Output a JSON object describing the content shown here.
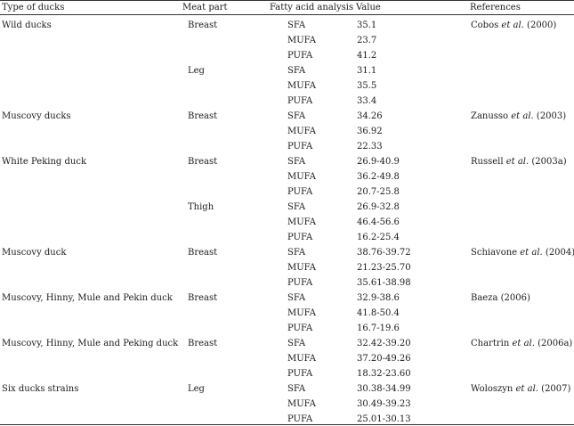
{
  "headers": {
    "type": "Type of ducks",
    "meat": "Meat part",
    "fatty": "Fatty acid analysis",
    "value": "Value",
    "refs": "References"
  },
  "rows": [
    {
      "type": "Wild ducks",
      "meat": "Breast",
      "fa": "SFA",
      "value": "35.1",
      "ref": {
        "pre": "Cobos ",
        "etal": "et al.",
        "post": " (2000)"
      }
    },
    {
      "type": "",
      "meat": "",
      "fa": "MUFA",
      "value": "23.7",
      "ref": null
    },
    {
      "type": "",
      "meat": "",
      "fa": "PUFA",
      "value": "41.2",
      "ref": null
    },
    {
      "type": "",
      "meat": "Leg",
      "fa": "SFA",
      "value": "31.1",
      "ref": null
    },
    {
      "type": "",
      "meat": "",
      "fa": "MUFA",
      "value": "35.5",
      "ref": null
    },
    {
      "type": "",
      "meat": "",
      "fa": "PUFA",
      "value": "33.4",
      "ref": null
    },
    {
      "type": "Muscovy ducks",
      "meat": "Breast",
      "fa": "SFA",
      "value": "34.26",
      "ref": {
        "pre": "Zanusso ",
        "etal": "et al.",
        "post": " (2003)"
      }
    },
    {
      "type": "",
      "meat": "",
      "fa": "MUFA",
      "value": "36.92",
      "ref": null
    },
    {
      "type": "",
      "meat": "",
      "fa": "PUFA",
      "value": "22.33",
      "ref": null
    },
    {
      "type": "White Peking duck",
      "meat": "Breast",
      "fa": "SFA",
      "value": "26.9-40.9",
      "ref": {
        "pre": "Russell ",
        "etal": "et al.",
        "post": " (2003a)"
      }
    },
    {
      "type": "",
      "meat": "",
      "fa": "MUFA",
      "value": "36.2-49.8",
      "ref": null
    },
    {
      "type": "",
      "meat": "",
      "fa": "PUFA",
      "value": "20.7-25.8",
      "ref": null
    },
    {
      "type": "",
      "meat": "Thigh",
      "fa": "SFA",
      "value": "26.9-32.8",
      "ref": null
    },
    {
      "type": "",
      "meat": "",
      "fa": "MUFA",
      "value": "46.4-56.6",
      "ref": null
    },
    {
      "type": "",
      "meat": "",
      "fa": "PUFA",
      "value": "16.2-25.4",
      "ref": null
    },
    {
      "type": "Muscovy duck",
      "meat": "Breast",
      "fa": "SFA",
      "value": "38.76-39.72",
      "ref": {
        "pre": "Schiavone ",
        "etal": "et al.",
        "post": " (2004)"
      }
    },
    {
      "type": "",
      "meat": "",
      "fa": "MUFA",
      "value": "21.23-25.70",
      "ref": null
    },
    {
      "type": "",
      "meat": "",
      "fa": "PUFA",
      "value": "35.61-38.98",
      "ref": null
    },
    {
      "type": "Muscovy, Hinny, Mule and Pekin duck",
      "meat": "Breast",
      "fa": "SFA",
      "value": "32.9-38.6",
      "ref": {
        "pre": "Baeza (2006)",
        "etal": "",
        "post": ""
      }
    },
    {
      "type": "",
      "meat": "",
      "fa": "MUFA",
      "value": "41.8-50.4",
      "ref": null
    },
    {
      "type": "",
      "meat": "",
      "fa": "PUFA",
      "value": "16.7-19.6",
      "ref": null
    },
    {
      "type": "Muscovy, Hinny, Mule and Peking duck",
      "meat": "Breast",
      "fa": "SFA",
      "value": "32.42-39.20",
      "ref": {
        "pre": "Chartrin ",
        "etal": "et al.",
        "post": " (2006a)"
      }
    },
    {
      "type": "",
      "meat": "",
      "fa": "MUFA",
      "value": "37.20-49.26",
      "ref": null
    },
    {
      "type": "",
      "meat": "",
      "fa": "PUFA",
      "value": "18.32-23.60",
      "ref": null
    },
    {
      "type": "Six ducks strains",
      "meat": "Leg",
      "fa": "SFA",
      "value": "30.38-34.99",
      "ref": {
        "pre": "Woloszyn ",
        "etal": "et al.",
        "post": " (2007)"
      }
    },
    {
      "type": "",
      "meat": "",
      "fa": "MUFA",
      "value": "30.49-39.23",
      "ref": null
    },
    {
      "type": "",
      "meat": "",
      "fa": "PUFA",
      "value": "25.01-30.13",
      "ref": null
    }
  ]
}
